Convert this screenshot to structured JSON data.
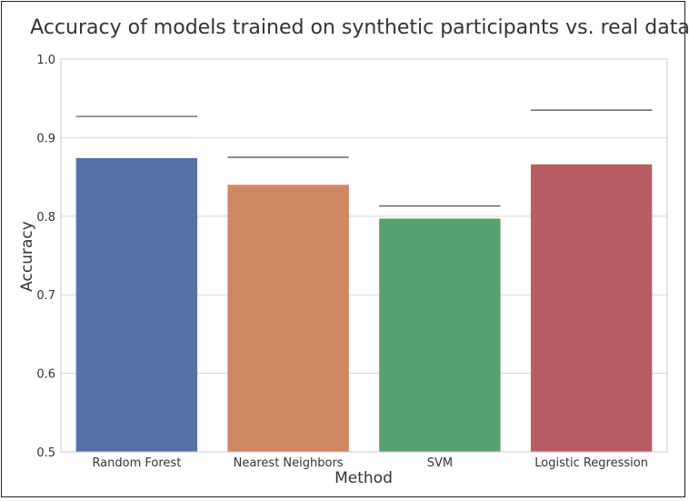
{
  "chart_data": {
    "type": "bar",
    "title": "Accuracy of models trained on synthetic participants vs. real data",
    "xlabel": "Method",
    "ylabel": "Accuracy",
    "ylim": [
      0.5,
      1.0
    ],
    "yticks": [
      "0.5",
      "0.6",
      "0.7",
      "0.8",
      "0.9",
      "1.0"
    ],
    "grid": true,
    "categories": [
      "Random Forest",
      "Nearest Neighbors",
      "SVM",
      "Logistic Regression"
    ],
    "values": [
      0.874,
      0.84,
      0.797,
      0.866
    ],
    "reference_values": [
      0.927,
      0.875,
      0.813,
      0.935
    ],
    "colors": [
      "#5572a6",
      "#cd8762",
      "#58a16e",
      "#b85c62"
    ]
  }
}
